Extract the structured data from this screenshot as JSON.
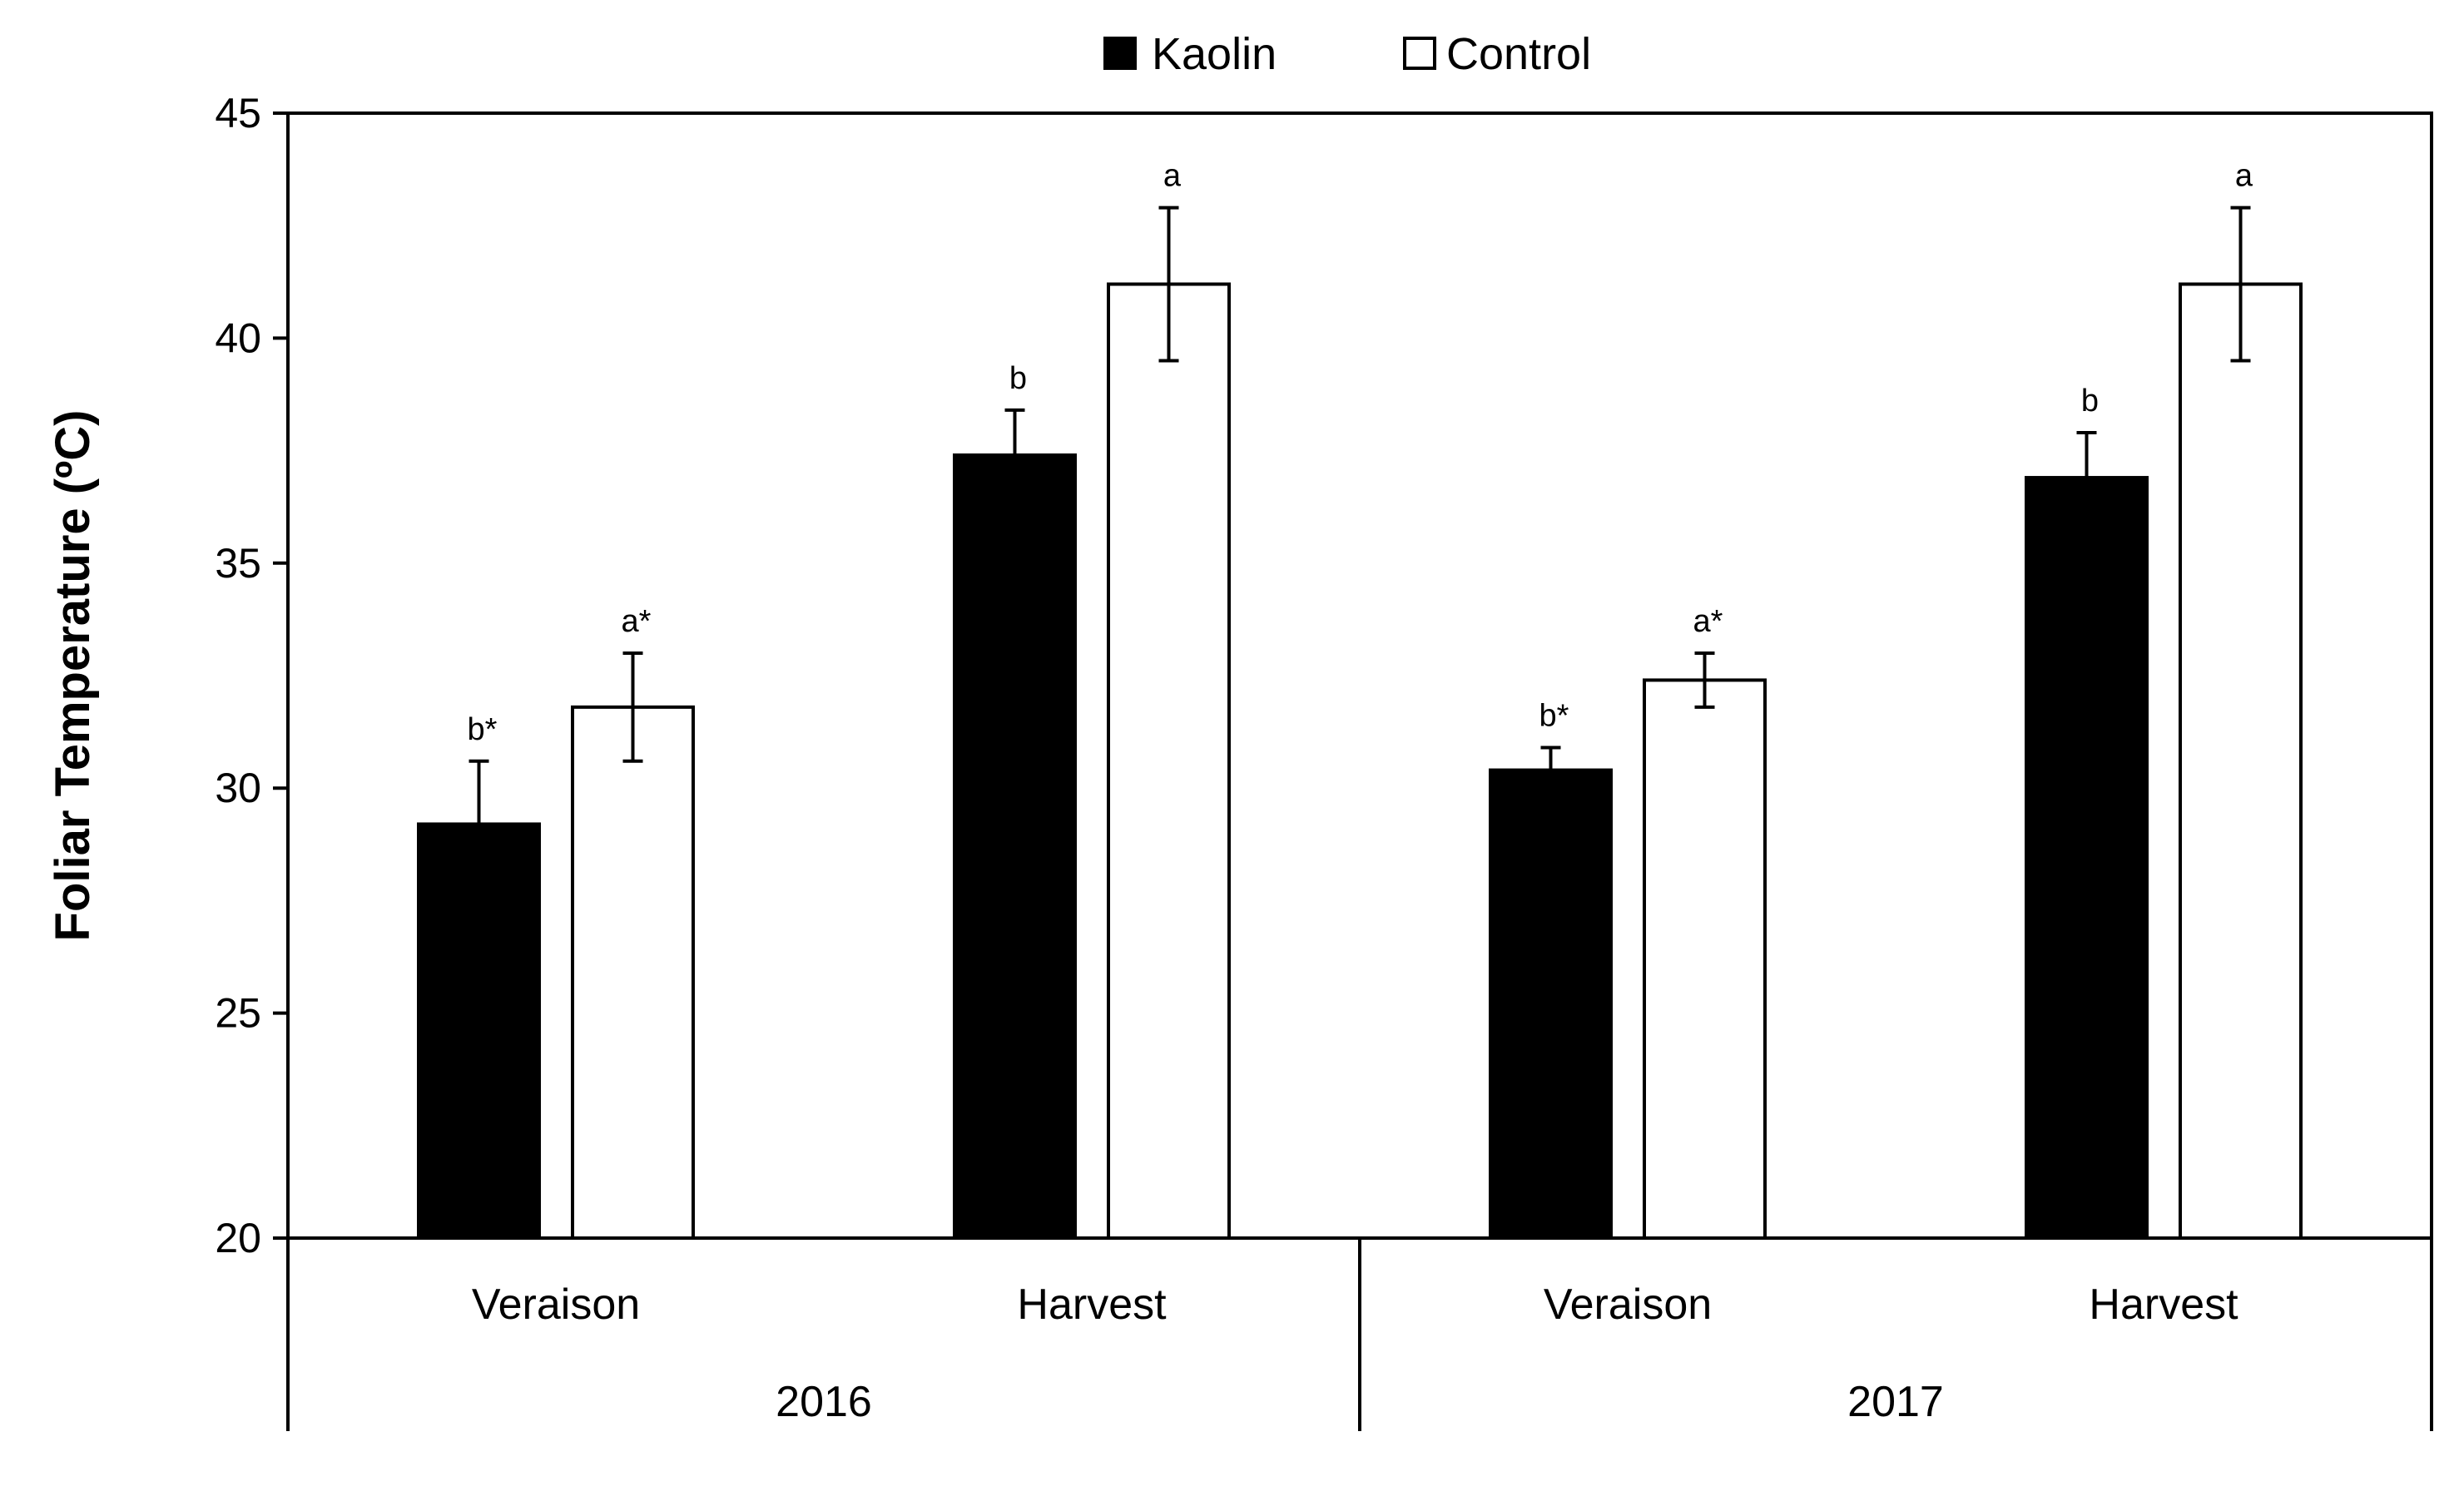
{
  "chart_data": {
    "type": "bar",
    "title": "",
    "xlabel": "",
    "ylabel": "Foliar Temperature (ºC)",
    "ylim": [
      20,
      45
    ],
    "yticks": [
      20,
      25,
      30,
      35,
      40,
      45
    ],
    "grid": false,
    "legend_position": "top-center",
    "groups": [
      {
        "label": "2016",
        "categories": [
          "Veraison",
          "Harvest"
        ]
      },
      {
        "label": "2017",
        "categories": [
          "Veraison",
          "Harvest"
        ]
      }
    ],
    "series": [
      {
        "name": "Kaolin",
        "color": "#000000",
        "values": [
          29.2,
          37.4,
          30.4,
          36.9
        ],
        "errors": [
          1.4,
          1.0,
          0.5,
          1.0
        ],
        "significance": [
          "b*",
          "b",
          "b*",
          "b"
        ]
      },
      {
        "name": "Control",
        "color": "#ffffff",
        "values": [
          31.8,
          41.2,
          32.4,
          41.2
        ],
        "errors": [
          1.2,
          1.7,
          0.6,
          1.7
        ],
        "significance": [
          "a*",
          "a",
          "a*",
          "a"
        ]
      }
    ]
  }
}
